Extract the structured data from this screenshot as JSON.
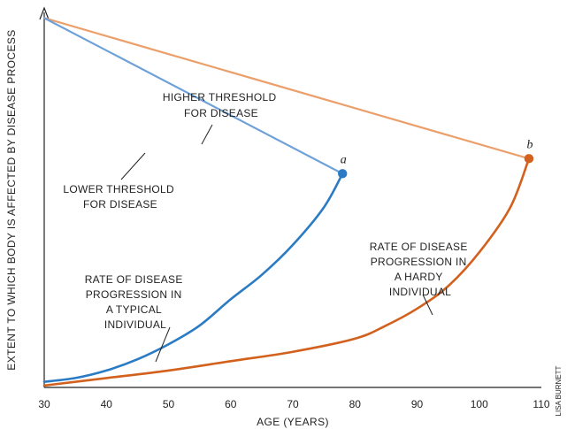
{
  "chart_data": {
    "type": "line",
    "xlabel": "AGE (YEARS)",
    "ylabel": "EXTENT TO WHICH BODY IS AFFECTED BY DISEASE PROCESS",
    "xlim": [
      30,
      110
    ],
    "x_ticks": [
      30,
      40,
      50,
      60,
      70,
      80,
      90,
      100,
      110
    ],
    "y_ticks_shown": false,
    "ylim": [
      0,
      100
    ],
    "credit": "LISA BURNETT",
    "colors": {
      "lower_threshold": "#6fa1d9",
      "higher_threshold": "#eba06c",
      "typical": "#2a7bc3",
      "hardy": "#d2611e"
    },
    "series": [
      {
        "key": "higher_threshold",
        "label_lines": [
          "HIGHER THRESHOLD",
          "FOR DISEASE"
        ],
        "x": [
          30,
          108
        ],
        "y": [
          98.5,
          61
        ]
      },
      {
        "key": "lower_threshold",
        "label_lines": [
          "LOWER THRESHOLD",
          "FOR DISEASE"
        ],
        "x": [
          30,
          78
        ],
        "y": [
          98.5,
          57
        ]
      },
      {
        "key": "typical",
        "label_lines": [
          "RATE OF DISEASE",
          "PROGRESSION IN",
          "A TYPICAL",
          "INDIVIDUAL"
        ],
        "x": [
          30,
          35,
          40,
          45,
          50,
          55,
          60,
          65,
          70,
          75,
          78
        ],
        "y": [
          1.5,
          2.5,
          4.5,
          7.5,
          11.5,
          16.5,
          23.5,
          30,
          38,
          48,
          57
        ]
      },
      {
        "key": "hardy",
        "label_lines": [
          "RATE OF DISEASE",
          "PROGRESSION IN",
          "A HARDY",
          "INDIVIDUAL"
        ],
        "x": [
          30,
          40,
          50,
          60,
          70,
          80,
          85,
          90,
          95,
          100,
          105,
          108
        ],
        "y": [
          0.5,
          2.5,
          4.5,
          7,
          9.5,
          13,
          16.5,
          21,
          27,
          36,
          48,
          61
        ]
      }
    ],
    "points": [
      {
        "label": "a",
        "x": 78,
        "y": 57,
        "series": "typical"
      },
      {
        "label": "b",
        "x": 108,
        "y": 61,
        "series": "hardy"
      }
    ]
  }
}
